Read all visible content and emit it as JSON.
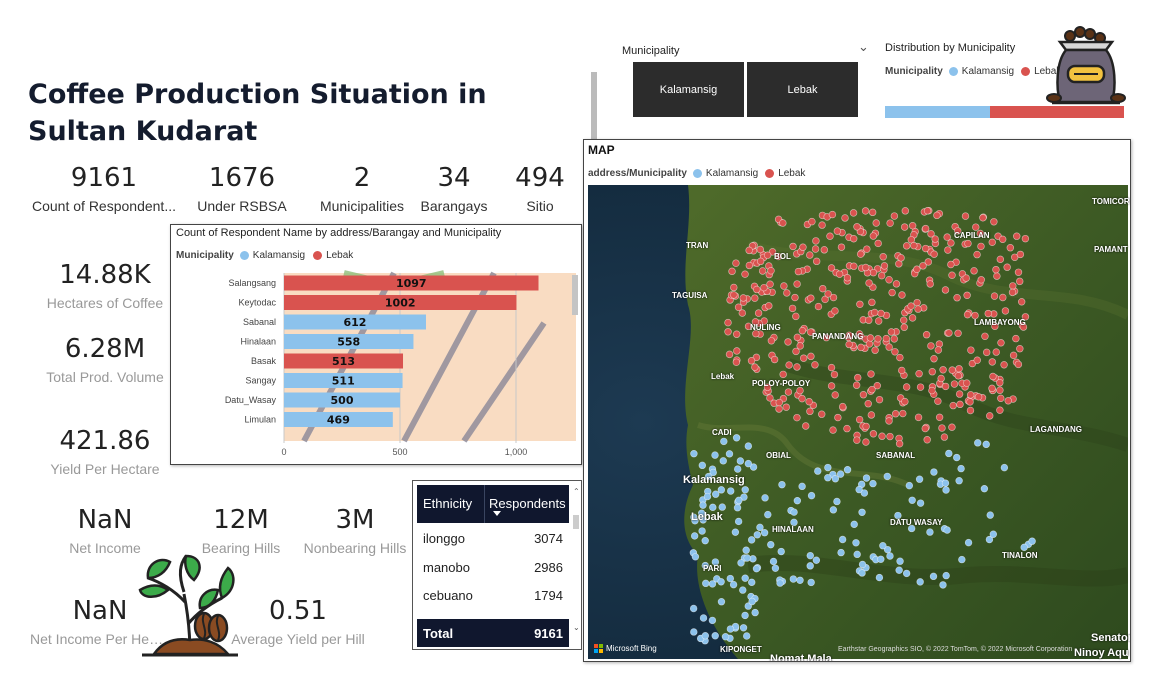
{
  "title": "Coffee Production Situation in Sultan Kudarat",
  "kpis_top": [
    {
      "value": "9161",
      "label": "Count of Respondent..."
    },
    {
      "value": "1676",
      "label": "Under RSBSA"
    },
    {
      "value": "2",
      "label": "Municipalities"
    },
    {
      "value": "34",
      "label": "Barangays"
    },
    {
      "value": "494",
      "label": "Sitio"
    }
  ],
  "kpis_left": [
    {
      "value": "14.88K",
      "label": "Hectares of Coffee"
    },
    {
      "value": "6.28M",
      "label": "Total Prod. Volume"
    },
    {
      "value": "421.86",
      "label": "Yield Per Hectare"
    }
  ],
  "kpis_bottom": [
    {
      "value": "NaN",
      "label": "Net Income"
    },
    {
      "value": "12M",
      "label": "Bearing Hills"
    },
    {
      "value": "3M",
      "label": "Nonbearing Hills"
    },
    {
      "value": "NaN",
      "label": "Net Income Per Hecta..."
    },
    {
      "value": "0.51",
      "label": "Average Yield per Hill"
    }
  ],
  "colors": {
    "kalamansig": "#8cc2ec",
    "lebak": "#d9534f",
    "dark": "#10172e"
  },
  "legend": {
    "title": "Municipality",
    "items": [
      "Kalamansig",
      "Lebak"
    ]
  },
  "chart_data": {
    "type": "bar",
    "title": "Count of Respondent Name by address/Barangay and Municipality",
    "categories": [
      "Salangsang",
      "Keytodac",
      "Sabanal",
      "Hinalaan",
      "Basak",
      "Sangay",
      "Datu_Wasay",
      "Limulan"
    ],
    "values": [
      1097,
      1002,
      612,
      558,
      513,
      511,
      500,
      469
    ],
    "municipality": [
      "Lebak",
      "Lebak",
      "Kalamansig",
      "Kalamansig",
      "Lebak",
      "Kalamansig",
      "Kalamansig",
      "Kalamansig"
    ],
    "xticks": [
      "0",
      "500",
      "1,000"
    ],
    "xlim": [
      0,
      1250
    ]
  },
  "table": {
    "headers": [
      "Ethnicity",
      "Respondents"
    ],
    "rows": [
      {
        "ethnicity": "ilonggo",
        "count": "3074"
      },
      {
        "ethnicity": "manobo",
        "count": "2986"
      },
      {
        "ethnicity": "cebuano",
        "count": "1794"
      }
    ],
    "total_label": "Total",
    "total_value": "9161"
  },
  "slicer": {
    "label": "Municipality",
    "options": [
      "Kalamansig",
      "Lebak"
    ]
  },
  "distribution": {
    "title": "Distribution by Municipality",
    "kalamansig_share": 0.44,
    "lebak_share": 0.56
  },
  "map": {
    "title": "MAP",
    "legend_title": "address/Municipality",
    "places": [
      "TOMICOR",
      "PAMANT",
      "CAPILAN",
      "TRAN",
      "BOL",
      "TAGUISA",
      "NULING",
      "PANANDANG",
      "LAMBAYONG",
      "Lebak",
      "POLOY-POLOY",
      "LAGANDANG",
      "CADI",
      "OBIAL",
      "SABANAL",
      "Kalamansig",
      "Lebak",
      "HINALAAN",
      "DATU WASAY",
      "TINALON",
      "PARI",
      "KIPONGET",
      "Senator",
      "Ninoy Aqu",
      "Nomat Mala"
    ],
    "bing_label": "Microsoft Bing",
    "attribution": "Earthstar Geographics SIO, © 2022 TomTom, © 2022 Microsoft Corporation"
  }
}
